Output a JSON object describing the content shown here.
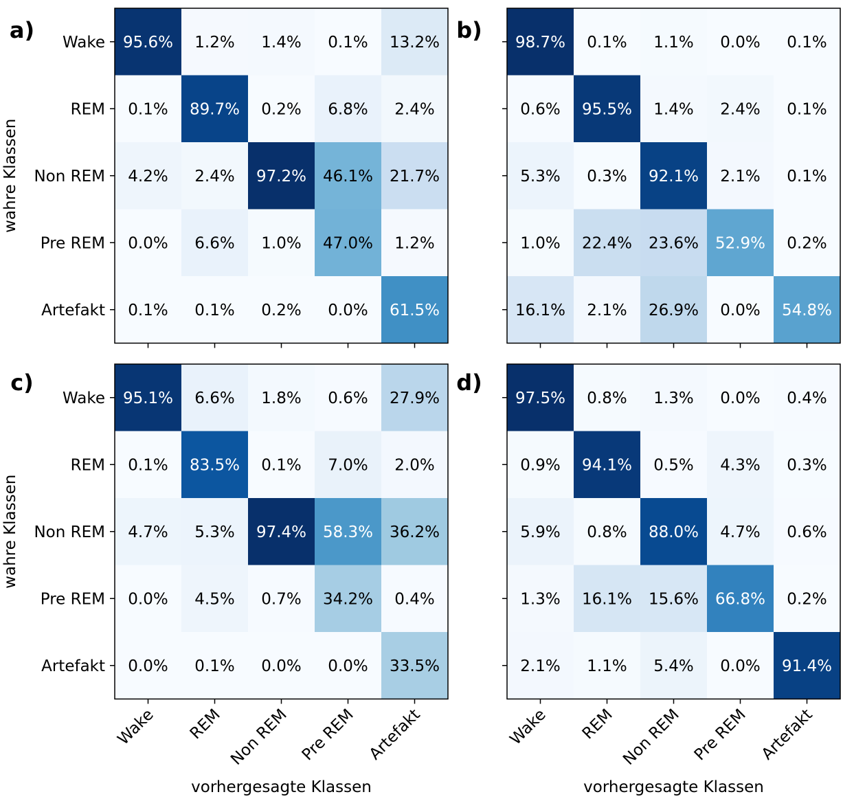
{
  "chart_data": [
    {
      "type": "heatmap",
      "panel_label": "a)",
      "xlabel": "",
      "ylabel": "wahre Klassen",
      "x_tick_labels_visible": false,
      "y_tick_labels_visible": true,
      "colormap": "Blues",
      "categories_x": [
        "Wake",
        "REM",
        "Non REM",
        "Pre REM",
        "Artefakt"
      ],
      "categories_y": [
        "Wake",
        "REM",
        "Non REM",
        "Pre REM",
        "Artefakt"
      ],
      "values": [
        [
          95.6,
          1.2,
          1.4,
          0.1,
          13.2
        ],
        [
          0.1,
          89.7,
          0.2,
          6.8,
          2.4
        ],
        [
          4.2,
          2.4,
          97.2,
          46.1,
          21.7
        ],
        [
          0.0,
          6.6,
          1.0,
          47.0,
          1.2
        ],
        [
          0.1,
          0.1,
          0.2,
          0.0,
          61.5
        ]
      ],
      "value_format": "0.0%"
    },
    {
      "type": "heatmap",
      "panel_label": "b)",
      "xlabel": "",
      "ylabel": "",
      "x_tick_labels_visible": false,
      "y_tick_labels_visible": false,
      "colormap": "Blues",
      "categories_x": [
        "Wake",
        "REM",
        "Non REM",
        "Pre REM",
        "Artefakt"
      ],
      "categories_y": [
        "Wake",
        "REM",
        "Non REM",
        "Pre REM",
        "Artefakt"
      ],
      "values": [
        [
          98.7,
          0.1,
          1.1,
          0.0,
          0.1
        ],
        [
          0.6,
          95.5,
          1.4,
          2.4,
          0.1
        ],
        [
          5.3,
          0.3,
          92.1,
          2.1,
          0.1
        ],
        [
          1.0,
          22.4,
          23.6,
          52.9,
          0.2
        ],
        [
          16.1,
          2.1,
          26.9,
          0.0,
          54.8
        ]
      ],
      "value_format": "0.0%"
    },
    {
      "type": "heatmap",
      "panel_label": "c)",
      "xlabel": "vorhergesagte Klassen",
      "ylabel": "wahre Klassen",
      "x_tick_labels_visible": true,
      "y_tick_labels_visible": true,
      "colormap": "Blues",
      "categories_x": [
        "Wake",
        "REM",
        "Non REM",
        "Pre REM",
        "Artefakt"
      ],
      "categories_y": [
        "Wake",
        "REM",
        "Non REM",
        "Pre REM",
        "Artefakt"
      ],
      "values": [
        [
          95.1,
          6.6,
          1.8,
          0.6,
          27.9
        ],
        [
          0.1,
          83.5,
          0.1,
          7.0,
          2.0
        ],
        [
          4.7,
          5.3,
          97.4,
          58.3,
          36.2
        ],
        [
          0.0,
          4.5,
          0.7,
          34.2,
          0.4
        ],
        [
          0.0,
          0.1,
          0.0,
          0.0,
          33.5
        ]
      ],
      "value_format": "0.0%"
    },
    {
      "type": "heatmap",
      "panel_label": "d)",
      "xlabel": "vorhergesagte Klassen",
      "ylabel": "",
      "x_tick_labels_visible": true,
      "y_tick_labels_visible": false,
      "colormap": "Blues",
      "categories_x": [
        "Wake",
        "REM",
        "Non REM",
        "Pre REM",
        "Artefakt"
      ],
      "categories_y": [
        "Wake",
        "REM",
        "Non REM",
        "Pre REM",
        "Artefakt"
      ],
      "values": [
        [
          97.5,
          0.8,
          1.3,
          0.0,
          0.4
        ],
        [
          0.9,
          94.1,
          0.5,
          4.3,
          0.3
        ],
        [
          5.9,
          0.8,
          88.0,
          4.7,
          0.6
        ],
        [
          1.3,
          16.1,
          15.6,
          66.8,
          0.2
        ],
        [
          2.1,
          1.1,
          5.4,
          0.0,
          91.4
        ]
      ],
      "value_format": "0.0%"
    }
  ]
}
